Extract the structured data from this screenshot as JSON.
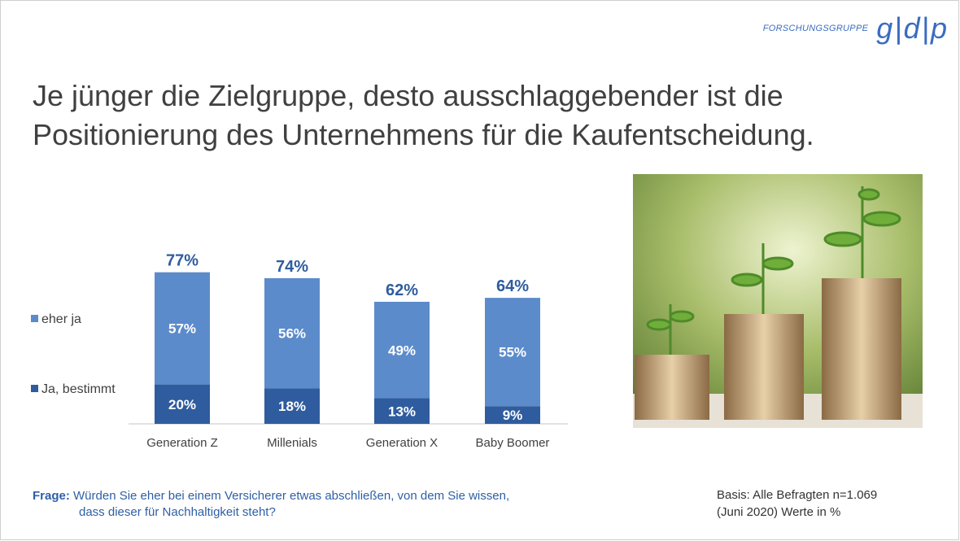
{
  "logo": {
    "small": "FORSCHUNGSGRUPPE",
    "big": "g|d|p"
  },
  "title": [
    "Je jünger die Zielgruppe, desto ausschlaggebender ist die",
    "Positionierung des Unternehmens für die Kaufentscheidung."
  ],
  "chart_data": {
    "type": "bar",
    "stacked": true,
    "categories": [
      "Generation Z",
      "Millenials",
      "Generation X",
      "Baby Boomer"
    ],
    "series": [
      {
        "name": "Ja, bestimmt",
        "values": [
          20,
          18,
          13,
          9
        ],
        "color": "#2f5c9e"
      },
      {
        "name": "eher ja",
        "values": [
          57,
          56,
          49,
          55
        ],
        "color": "#5b8bcb"
      }
    ],
    "totals": [
      77,
      74,
      62,
      64
    ],
    "legend": "left",
    "grid": false
  },
  "footer": {
    "frage_label": "Frage:",
    "frage_line1": "Würden Sie eher bei einem Versicherer etwas abschließen, von dem Sie wissen,",
    "frage_line2": "dass dieser für Nachhaltigkeit steht?",
    "basis_line1": "Basis: Alle Befragten n=1.069",
    "basis_line2": "(Juni 2020) Werte in %"
  }
}
